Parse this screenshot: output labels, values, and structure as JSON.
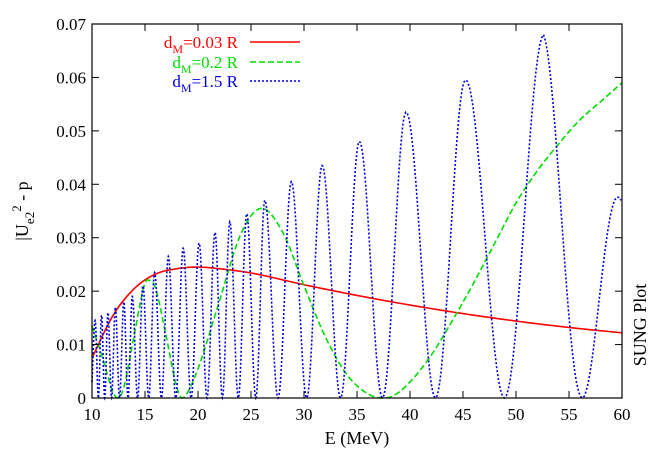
{
  "chart_data": {
    "type": "line",
    "xlabel": "E (MeV)",
    "ylabel_main": "|U",
    "ylabel_sub": "e2",
    "ylabel_sup": "2",
    "ylabel_tail": " - p",
    "xlim": [
      10,
      60
    ],
    "ylim": [
      0,
      0.07
    ],
    "xticks": [
      "10",
      "15",
      "20",
      "25",
      "30",
      "35",
      "40",
      "45",
      "50",
      "55",
      "60"
    ],
    "yticks": [
      "0",
      "0.01",
      "0.02",
      "0.03",
      "0.04",
      "0.05",
      "0.06",
      "0.07"
    ],
    "grid": false,
    "legend_position": "top-left",
    "watermark": "SUNG Plot",
    "series": [
      {
        "legend_main": "d",
        "legend_sub": "M",
        "legend_tail": "=0.03 R",
        "color": "#ff0000",
        "style": "solid",
        "x": [
          10,
          12,
          14,
          16,
          18,
          20,
          22,
          25,
          30,
          35,
          40,
          45,
          50,
          55,
          60
        ],
        "y": [
          0.0075,
          0.0155,
          0.0205,
          0.0232,
          0.0242,
          0.0245,
          0.0242,
          0.0234,
          0.0212,
          0.0192,
          0.0174,
          0.0158,
          0.0144,
          0.0132,
          0.0122
        ]
      },
      {
        "legend_main": "d",
        "legend_sub": "M",
        "legend_tail": "=0.2 R",
        "color": "#00dd00",
        "style": "dashed",
        "x": [
          10,
          11,
          12,
          12.5,
          13,
          14,
          15,
          15.5,
          16,
          17,
          18,
          18.5,
          19,
          20,
          22,
          24,
          26,
          28,
          30,
          32,
          34,
          36,
          37.5,
          38.5,
          40,
          42,
          44,
          46,
          48,
          50,
          52,
          54,
          56,
          58,
          60
        ],
        "y": [
          0.0135,
          0.0075,
          0.001,
          0.0,
          0.002,
          0.012,
          0.0215,
          0.022,
          0.0205,
          0.0115,
          0.002,
          0.0,
          0.001,
          0.0055,
          0.018,
          0.0305,
          0.0355,
          0.031,
          0.021,
          0.0115,
          0.0045,
          0.0008,
          0.0,
          0.0005,
          0.003,
          0.008,
          0.0145,
          0.0215,
          0.029,
          0.0365,
          0.0425,
          0.0475,
          0.052,
          0.0555,
          0.059
        ]
      },
      {
        "legend_main": "d",
        "legend_sub": "M",
        "legend_tail": "=1.5 R",
        "color": "#0000dd",
        "style": "dotted",
        "peaks_x": [
          10.3,
          10.9,
          11.5,
          12.2,
          13.0,
          13.8,
          14.8,
          15.9,
          17.2,
          18.6,
          20.1,
          21.6,
          23.0,
          24.6,
          26.3,
          28.8,
          31.7,
          35.2,
          39.6,
          45.2,
          52.6,
          59.9
        ],
        "peaks_y": [
          0.0145,
          0.0155,
          0.016,
          0.017,
          0.018,
          0.019,
          0.021,
          0.0235,
          0.0265,
          0.028,
          0.029,
          0.031,
          0.033,
          0.0345,
          0.037,
          0.0405,
          0.0435,
          0.048,
          0.0535,
          0.0595,
          0.068,
          0.037
        ]
      }
    ]
  }
}
